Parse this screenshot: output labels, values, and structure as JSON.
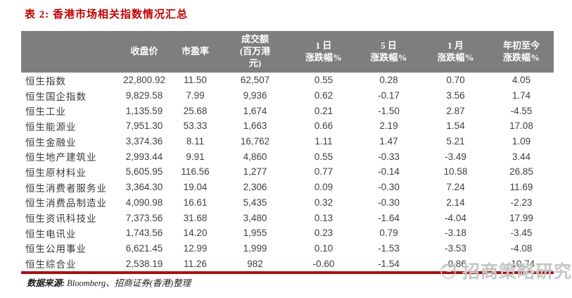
{
  "title": "表 2: 香港市场相关指数情况汇总",
  "table": {
    "columns": [
      {
        "label": "",
        "lines": []
      },
      {
        "label": "收盘价",
        "lines": [
          "收盘价"
        ]
      },
      {
        "label": "市盈率",
        "lines": [
          "市盈率"
        ]
      },
      {
        "label": "成交额(百万港元)",
        "lines": [
          "成交额",
          "(百万港",
          "元)"
        ]
      },
      {
        "label": "1 日涨跌幅%",
        "lines": [
          "1 日",
          "涨跌幅%"
        ]
      },
      {
        "label": "5 日涨跌幅%",
        "lines": [
          "5 日",
          "涨跌幅%"
        ]
      },
      {
        "label": "1 月涨跌幅%",
        "lines": [
          "1 月",
          "涨跌幅%"
        ]
      },
      {
        "label": "年初至今涨跌幅%",
        "lines": [
          "年初至今",
          "涨跌幅%"
        ]
      }
    ],
    "rows": [
      {
        "name": "恒生指数",
        "close": "22,800.92",
        "pe": "11.50",
        "turnover": "62,507",
        "chg_1d": "0.55",
        "chg_5d": "0.28",
        "chg_1m": "0.70",
        "chg_ytd": "4.05"
      },
      {
        "name": "恒生国企指数",
        "close": "9,829.58",
        "pe": "7.99",
        "turnover": "9,936",
        "chg_1d": "0.62",
        "chg_5d": "-0.17",
        "chg_1m": "3.56",
        "chg_ytd": "1.74"
      },
      {
        "name": "恒生工业",
        "close": "1,135.59",
        "pe": "25.68",
        "turnover": "1,674",
        "chg_1d": "0.21",
        "chg_5d": "-1.50",
        "chg_1m": "2.87",
        "chg_ytd": "-4.55"
      },
      {
        "name": "恒生能源业",
        "close": "7,951.30",
        "pe": "53.33",
        "turnover": "1,663",
        "chg_1d": "0.66",
        "chg_5d": "2.19",
        "chg_1m": "1.54",
        "chg_ytd": "17.08"
      },
      {
        "name": "恒生金融业",
        "close": "3,374.36",
        "pe": "8.11",
        "turnover": "16,762",
        "chg_1d": "1.11",
        "chg_5d": "1.47",
        "chg_1m": "5.21",
        "chg_ytd": "1.09"
      },
      {
        "name": "恒生地产建筑业",
        "close": "2,993.44",
        "pe": "9.91",
        "turnover": "4,860",
        "chg_1d": "0.55",
        "chg_5d": "-0.33",
        "chg_1m": "-3.49",
        "chg_ytd": "3.44"
      },
      {
        "name": "恒生原材料业",
        "close": "5,605.95",
        "pe": "116.56",
        "turnover": "1,277",
        "chg_1d": "0.77",
        "chg_5d": "-0.14",
        "chg_1m": "10.58",
        "chg_ytd": "26.85"
      },
      {
        "name": "恒生消费者服务业",
        "close": "3,364.30",
        "pe": "19.04",
        "turnover": "2,306",
        "chg_1d": "0.09",
        "chg_5d": "-0.30",
        "chg_1m": "7.24",
        "chg_ytd": "11.69"
      },
      {
        "name": "恒生消费品制造业",
        "close": "4,090.98",
        "pe": "16.61",
        "turnover": "5,435",
        "chg_1d": "0.32",
        "chg_5d": "-0.30",
        "chg_1m": "2.14",
        "chg_ytd": "-2.23"
      },
      {
        "name": "恒生资讯科技业",
        "close": "7,373.56",
        "pe": "31.68",
        "turnover": "3,480",
        "chg_1d": "0.13",
        "chg_5d": "-1.64",
        "chg_1m": "-4.04",
        "chg_ytd": "17.99"
      },
      {
        "name": "恒生电讯业",
        "close": "1,743.56",
        "pe": "14.20",
        "turnover": "1,955",
        "chg_1d": "0.23",
        "chg_5d": "0.79",
        "chg_1m": "-3.18",
        "chg_ytd": "-3.45"
      },
      {
        "name": "恒生公用事业",
        "close": "6,621.45",
        "pe": "12.99",
        "turnover": "1,999",
        "chg_1d": "0.10",
        "chg_5d": "-1.53",
        "chg_1m": "-3.53",
        "chg_ytd": "-4.08"
      },
      {
        "name": "恒生综合业",
        "close": "2,538.19",
        "pe": "11.26",
        "turnover": "982",
        "chg_1d": "-0.60",
        "chg_5d": "-1.54",
        "chg_1m": "-0.86",
        "chg_ytd": "-10.74"
      }
    ]
  },
  "footer": {
    "label": "数据来源:",
    "text": "Bloomberg、招商证券(香港)整理"
  },
  "watermark": {
    "icon": "magpie-logo-icon",
    "text": "招商策略研究"
  },
  "colors": {
    "title_red": "#c00000",
    "header_bg": "#7e7e7e",
    "header_text": "#ffffff",
    "rule_red": "#a31414",
    "watermark_gray": "#c6c6c6"
  }
}
